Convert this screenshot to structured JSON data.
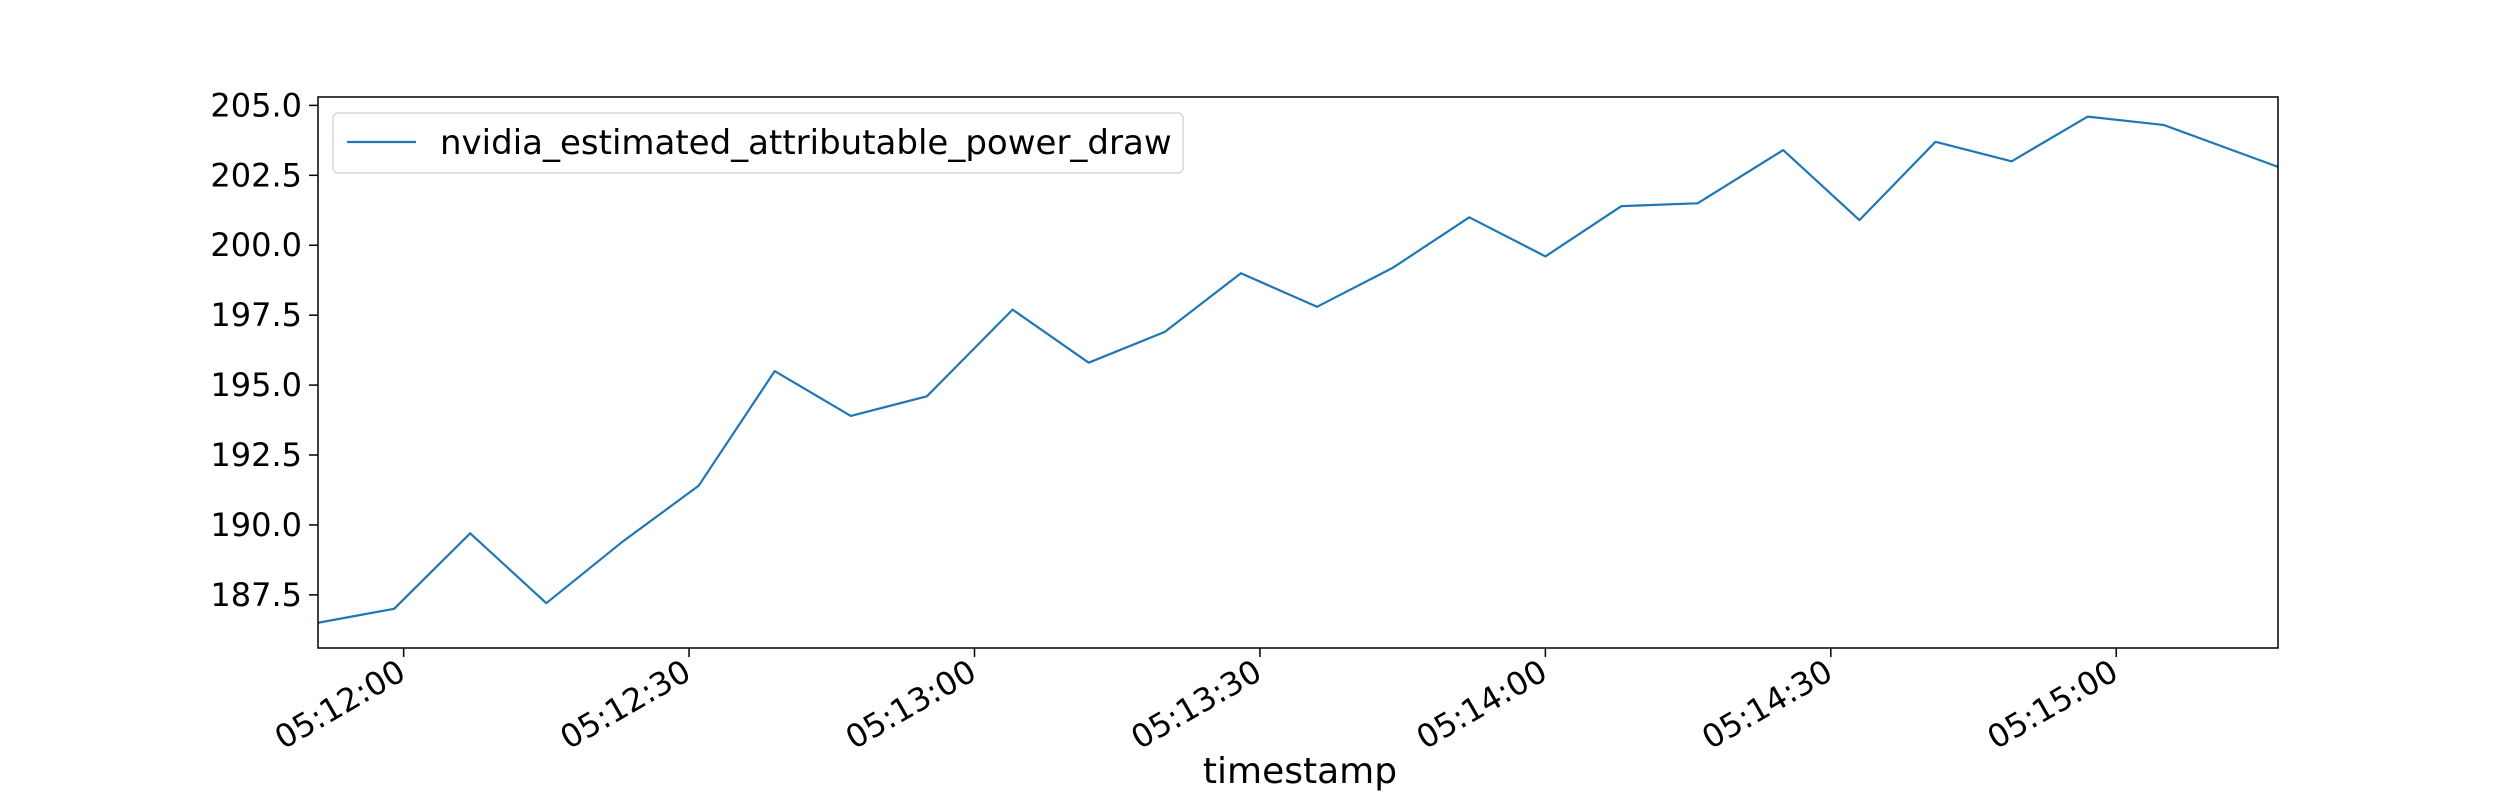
{
  "chart_data": {
    "type": "line",
    "title": "",
    "xlabel": "timestamp",
    "ylabel": "",
    "x_ticks": [
      "05:12:00",
      "05:12:30",
      "05:13:00",
      "05:13:30",
      "05:14:00",
      "05:14:30",
      "05:15:00"
    ],
    "y_ticks": [
      "187.5",
      "190.0",
      "192.5",
      "195.0",
      "197.5",
      "200.0",
      "202.5",
      "205.0"
    ],
    "xlim": [
      "05:11:51",
      "05:15:17"
    ],
    "ylim": [
      185.6,
      205.3
    ],
    "grid": false,
    "legend_position": "upper-left",
    "series": [
      {
        "name": "nvidia_estimated_attributable_power_draw",
        "color": "#1f77b4",
        "x": [
          "05:11:51",
          "05:11:59",
          "05:12:07",
          "05:12:15",
          "05:12:23",
          "05:12:31",
          "05:12:39",
          "05:12:47",
          "05:12:55",
          "05:13:04",
          "05:13:12",
          "05:13:20",
          "05:13:28",
          "05:13:36",
          "05:13:44",
          "05:13:52",
          "05:14:00",
          "05:14:08",
          "05:14:16",
          "05:14:25",
          "05:14:33",
          "05:14:41",
          "05:14:49",
          "05:14:57",
          "05:15:05",
          "05:15:17"
        ],
        "values": [
          186.5,
          187.0,
          189.7,
          187.2,
          189.4,
          191.4,
          195.5,
          193.9,
          194.6,
          197.7,
          195.8,
          196.9,
          199.0,
          197.8,
          199.2,
          201.0,
          199.6,
          201.4,
          201.5,
          203.4,
          200.9,
          203.7,
          203.0,
          204.6,
          204.3,
          202.8
        ]
      }
    ]
  }
}
